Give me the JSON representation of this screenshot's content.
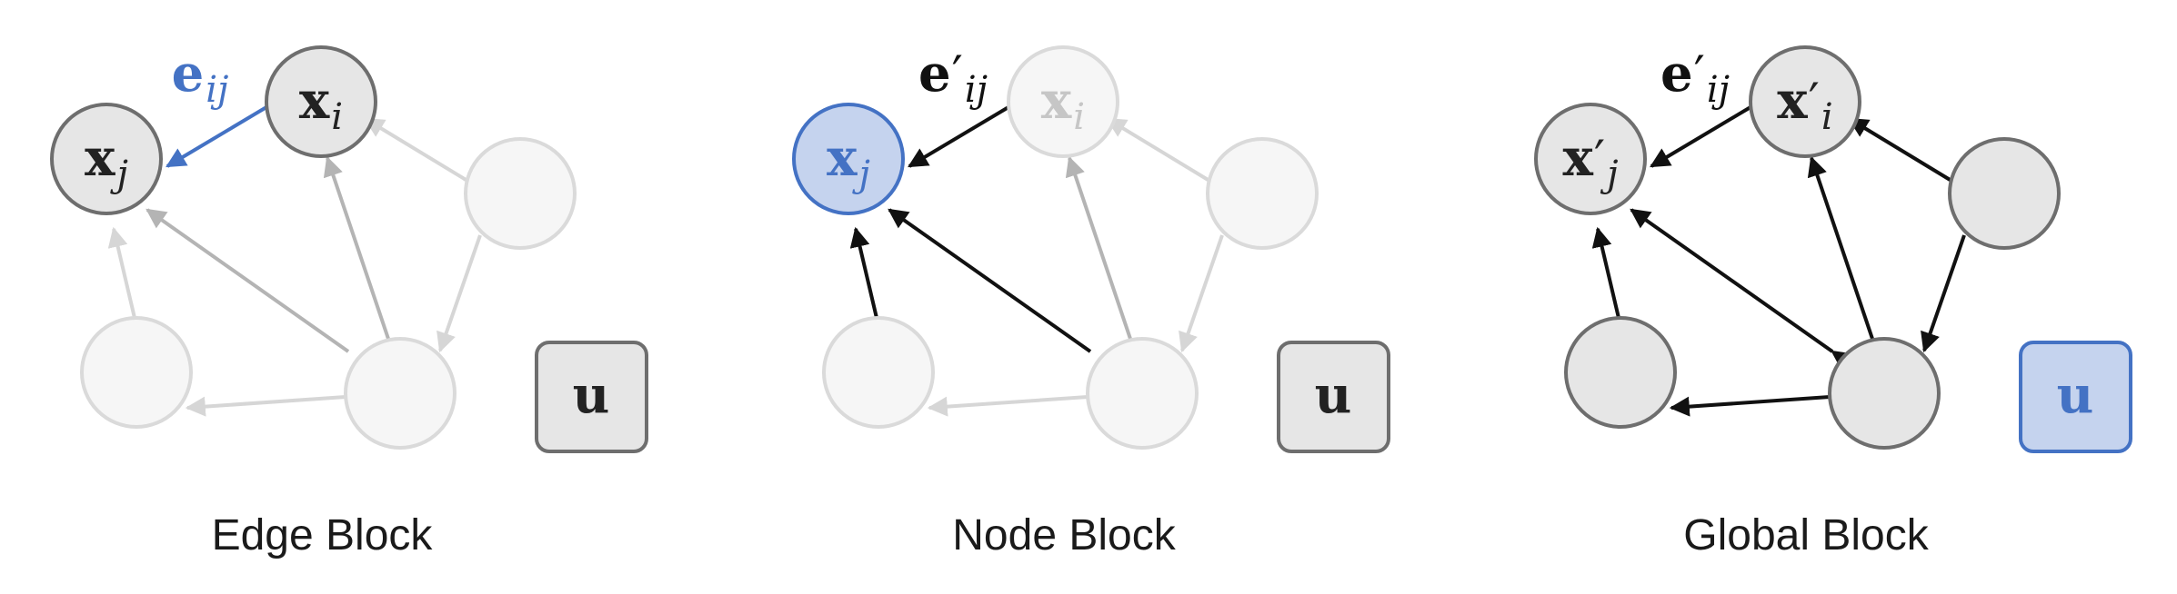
{
  "panels": [
    {
      "caption": "Edge Block",
      "edge_label": {
        "base": "e",
        "prime": "",
        "sub": "ij"
      },
      "nodes": {
        "xi": {
          "base": "x",
          "prime": "",
          "sub": "i"
        },
        "xj": {
          "base": "x",
          "prime": "",
          "sub": "j"
        }
      },
      "global": "u"
    },
    {
      "caption": "Node Block",
      "edge_label": {
        "base": "e",
        "prime": "′",
        "sub": "ij"
      },
      "nodes": {
        "xi": {
          "base": "x",
          "prime": "",
          "sub": "i"
        },
        "xj": {
          "base": "x",
          "prime": "",
          "sub": "j"
        }
      },
      "global": "u"
    },
    {
      "caption": "Global Block",
      "edge_label": {
        "base": "e",
        "prime": "′",
        "sub": "ij"
      },
      "nodes": {
        "xi": {
          "base": "x",
          "prime": "′",
          "sub": "i"
        },
        "xj": {
          "base": "x",
          "prime": "′",
          "sub": "j"
        }
      },
      "global": "u"
    }
  ],
  "colors": {
    "highlight_stroke": "#4472c4",
    "highlight_fill": "#c5d3ee",
    "dark_stroke": "#6e6e6e",
    "dark_fill": "#e6e6e6",
    "faded_stroke": "#dadada",
    "faded_fill": "#f6f6f6",
    "faded_text": "#c6c6c6",
    "medium_edge": "#b4b4b4",
    "light_edge": "#d6d6d6",
    "black_edge": "#111111",
    "text_dark": "#222222"
  }
}
